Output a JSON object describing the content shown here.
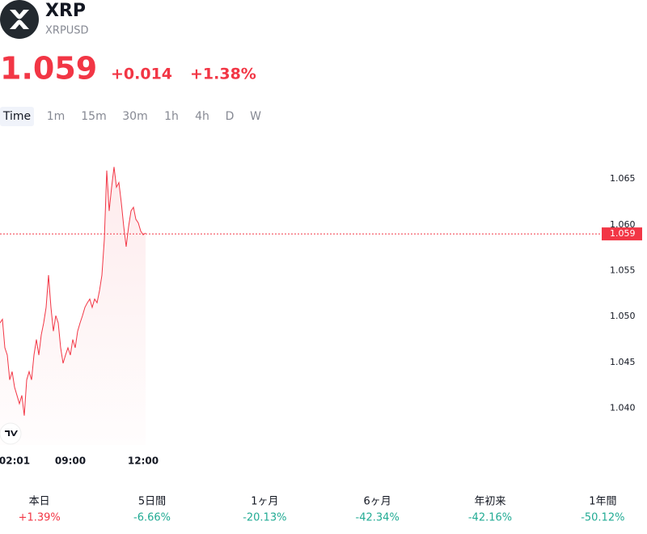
{
  "header": {
    "symbol": "XRP",
    "ticker": "XRPUSD",
    "change": "+0.014",
    "change_percent": "+1.38%"
  },
  "intervals": [
    "Time",
    "1m",
    "15m",
    "30m",
    "1h",
    "4h",
    "D",
    "W"
  ],
  "chart_data": {
    "type": "line",
    "color": "#f23645",
    "x": [
      0,
      1,
      2,
      3,
      4,
      5,
      6,
      7,
      8,
      9,
      10,
      11,
      12,
      13,
      14,
      15,
      16,
      17,
      18,
      19,
      20,
      21,
      22,
      23,
      24,
      25,
      26,
      27,
      28,
      29,
      30,
      31,
      32,
      33,
      34,
      35,
      36,
      37,
      38,
      39,
      40,
      41,
      42,
      43,
      44,
      45,
      46,
      47,
      48,
      49,
      50,
      51,
      52,
      53,
      54,
      55,
      56,
      57,
      58,
      59,
      60
    ],
    "values": [
      1.0493,
      1.0497,
      1.0466,
      1.0458,
      1.0431,
      1.044,
      1.0423,
      1.0414,
      1.0405,
      1.0414,
      1.0392,
      1.0431,
      1.044,
      1.0431,
      1.0458,
      1.0475,
      1.0458,
      1.048,
      1.0493,
      1.051,
      1.0545,
      1.051,
      1.0484,
      1.0501,
      1.0493,
      1.0466,
      1.0449,
      1.0458,
      1.0466,
      1.0458,
      1.0475,
      1.0466,
      1.0484,
      1.0493,
      1.0501,
      1.051,
      1.0515,
      1.0519,
      1.051,
      1.0519,
      1.0515,
      1.0528,
      1.0545,
      1.0584,
      1.0659,
      1.0615,
      1.0641,
      1.0663,
      1.0641,
      1.0646,
      1.0624,
      1.0598,
      1.0576,
      1.0598,
      1.0615,
      1.0619,
      1.0606,
      1.0602,
      1.0593,
      1.0589,
      1.0591
    ],
    "last_value": 1.059,
    "xlim": [
      0,
      246
    ],
    "xticks": [
      {
        "value": 6,
        "label": "02:01"
      },
      {
        "value": 29,
        "label": "09:00"
      },
      {
        "value": 59,
        "label": "12:00"
      }
    ],
    "ylim": [
      1.036,
      1.0695
    ],
    "yticks": [
      {
        "value": 1.04,
        "label": "1.040"
      },
      1.045,
      {
        "value": 1.05,
        "label": "1.050"
      },
      1.055,
      {
        "value": 1.06,
        "label": "1.060"
      },
      1.065
    ]
  },
  "performance": [
    {
      "label": "本日",
      "value": "+1.39%"
    },
    {
      "label": "5日間",
      "value": "-6.66%"
    },
    {
      "label": "1ヶ月",
      "value": "-20.13%"
    },
    {
      "label": "6ヶ月",
      "value": "-42.34%"
    },
    {
      "label": "年初来",
      "value": "-42.16%"
    },
    {
      "label": "1年間",
      "value": "-50.12%"
    }
  ]
}
